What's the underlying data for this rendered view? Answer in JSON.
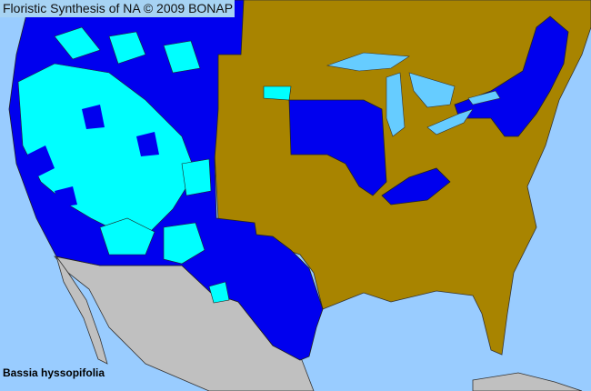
{
  "header": {
    "title": "Floristic Synthesis of NA © 2009 BONAP"
  },
  "map": {
    "species": "Bassia hyssopifolia",
    "colors": {
      "ocean": "#99ccff",
      "native_present": "#0000ee",
      "present_in_state": "#00ffff",
      "species_not_present": "#a88400",
      "outside_range": "#c0c0c0",
      "lakes": "#66ccff"
    }
  }
}
